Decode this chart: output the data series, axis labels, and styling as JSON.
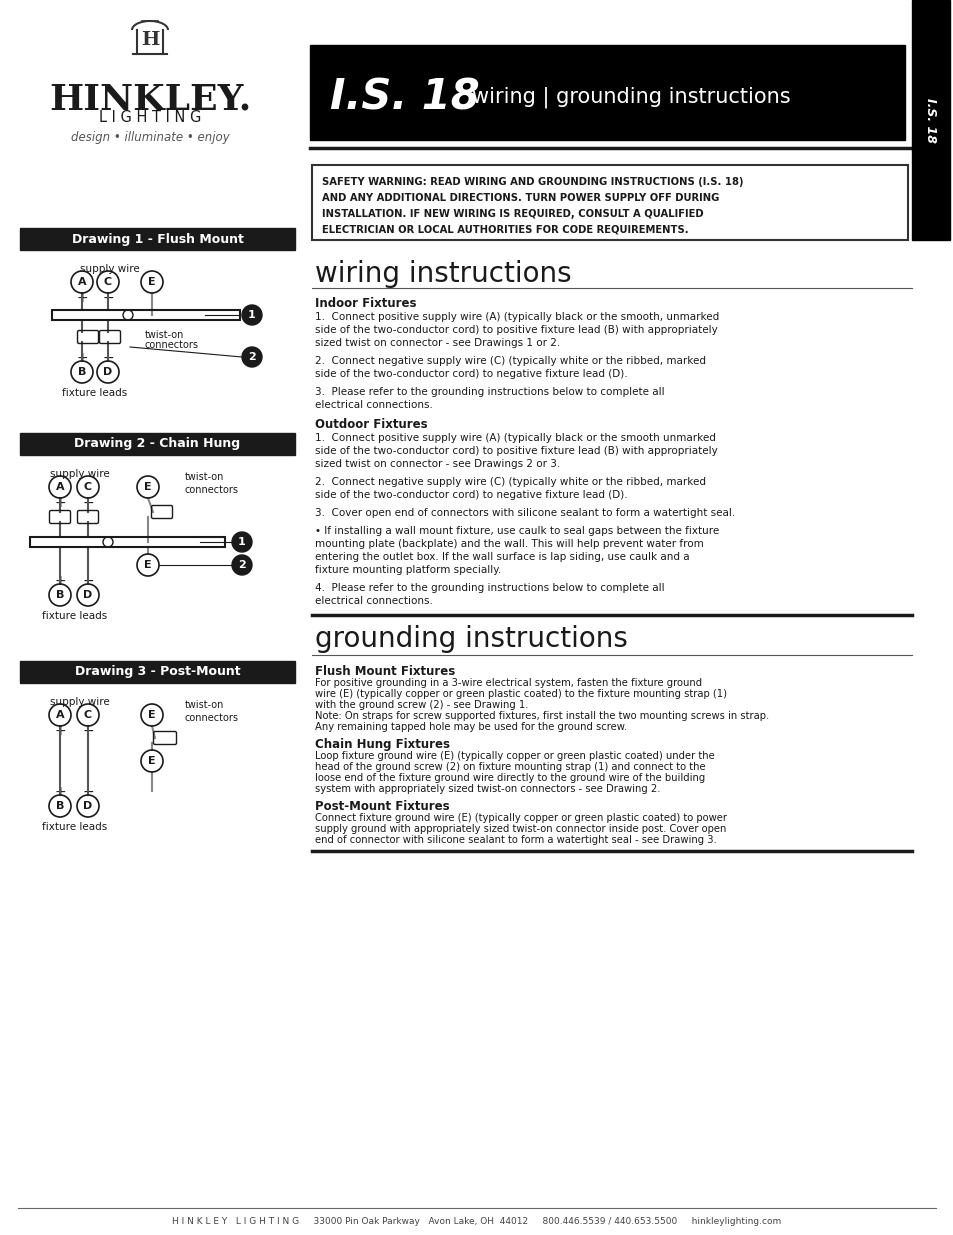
{
  "bg_color": "#ffffff",
  "header_bg": "#000000",
  "body_text_color": "#1a1a1a",
  "page_width": 9.54,
  "page_height": 12.35,
  "brand_tagline": "design • illuminate • enjoy",
  "safety_warning": "SAFETY WARNING: READ WIRING AND GROUNDING INSTRUCTIONS (I.S. 18)\nAND ANY ADDITIONAL DIRECTIONS. TURN POWER SUPPLY OFF DURING\nINSTALLATION. IF NEW WIRING IS REQUIRED, CONSULT A QUALIFIED\nELECTRICIAN OR LOCAL AUTHORITIES FOR CODE REQUIREMENTS.",
  "wiring_title": "wiring instructions",
  "indoor_title": "Indoor Fixtures",
  "indoor_text": "1.  Connect positive supply wire (A) (typically black or the smooth, unmarked\nside of the two-conductor cord) to positive fixture lead (B) with appropriately\nsized twist on connector - see Drawings 1 or 2.\n\n2.  Connect negative supply wire (C) (typically white or the ribbed, marked\nside of the two-conductor cord) to negative fixture lead (D).\n\n3.  Please refer to the grounding instructions below to complete all\nelectrical connections.",
  "outdoor_title": "Outdoor Fixtures",
  "outdoor_text": "1.  Connect positive supply wire (A) (typically black or the smooth unmarked\nside of the two-conductor cord) to positive fixture lead (B) with appropriately\nsized twist on connector - see Drawings 2 or 3.\n\n2.  Connect negative supply wire (C) (typically white or the ribbed, marked\nside of the two-conductor cord) to negative fixture lead (D).\n\n3.  Cover open end of connectors with silicone sealant to form a watertight seal.\n\n• If installing a wall mount fixture, use caulk to seal gaps between the fixture\nmounting plate (backplate) and the wall. This will help prevent water from\nentering the outlet box. If the wall surface is lap siding, use caulk and a\nfixture mounting platform specially.\n\n4.  Please refer to the grounding instructions below to complete all\nelectrical connections.",
  "grounding_title": "grounding instructions",
  "flush_title": "Flush Mount Fixtures",
  "flush_text": "For positive grounding in a 3-wire electrical system, fasten the fixture ground\nwire (E) (typically copper or green plastic coated) to the fixture mounting strap (1)\nwith the ground screw (2) - see Drawing 1.\nNote: On straps for screw supported fixtures, first install the two mounting screws in strap.\nAny remaining tapped hole may be used for the ground screw.",
  "chain_title": "Chain Hung Fixtures",
  "chain_text": "Loop fixture ground wire (E) (typically copper or green plastic coated) under the\nhead of the ground screw (2) on fixture mounting strap (1) and connect to the\nloose end of the fixture ground wire directly to the ground wire of the building\nsystem with appropriately sized twist-on connectors - see Drawing 2.",
  "post_title": "Post-Mount Fixtures",
  "post_text": "Connect fixture ground wire (E) (typically copper or green plastic coated) to power\nsupply ground with appropriately sized twist-on connector inside post. Cover open\nend of connector with silicone sealant to form a watertight seal - see Drawing 3.",
  "footer_text": "H I N K L E Y   L I G H T I N G     33000 Pin Oak Parkway   Avon Lake, OH  44012     800.446.5539 / 440.653.5500     hinkleylighting.com",
  "draw1_title": "Drawing 1 - Flush Mount",
  "draw2_title": "Drawing 2 - Chain Hung",
  "draw3_title": "Drawing 3 - Post-Mount"
}
